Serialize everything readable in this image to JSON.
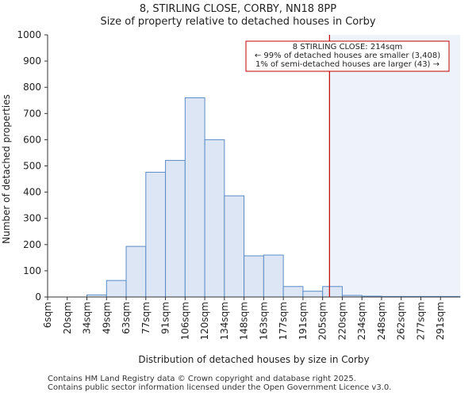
{
  "chart_data": {
    "type": "bar",
    "title": "8, STIRLING CLOSE, CORBY, NN18 8PP",
    "subtitle": "Size of property relative to detached houses in Corby",
    "xlabel": "Distribution of detached houses by size in Corby",
    "ylabel": "Number of detached properties",
    "ylim": [
      0,
      1000
    ],
    "yticks": [
      0,
      100,
      200,
      300,
      400,
      500,
      600,
      700,
      800,
      900,
      1000
    ],
    "categories": [
      "6sqm",
      "20sqm",
      "34sqm",
      "49sqm",
      "63sqm",
      "77sqm",
      "91sqm",
      "106sqm",
      "120sqm",
      "134sqm",
      "148sqm",
      "163sqm",
      "177sqm",
      "191sqm",
      "205sqm",
      "220sqm",
      "234sqm",
      "248sqm",
      "262sqm",
      "277sqm",
      "291sqm"
    ],
    "values": [
      0,
      0,
      8,
      63,
      193,
      476,
      521,
      760,
      600,
      386,
      157,
      160,
      40,
      22,
      40,
      6,
      3,
      2,
      2,
      2,
      2
    ],
    "bar_color": "#dce6f4",
    "bar_edge_color": "#5b8cc8",
    "marker": {
      "value_bin": 14.35,
      "color": "#c00000",
      "shaded_color": "#eef2fa"
    },
    "annotation": {
      "line1": "8 STIRLING CLOSE: 214sqm",
      "line2": "← 99% of detached houses are smaller (3,408)",
      "line3": "1% of semi-detached houses are larger (43) →"
    }
  },
  "footer": {
    "line1": "Contains HM Land Registry data © Crown copyright and database right 2025.",
    "line2": "Contains public sector information licensed under the Open Government Licence v3.0."
  }
}
